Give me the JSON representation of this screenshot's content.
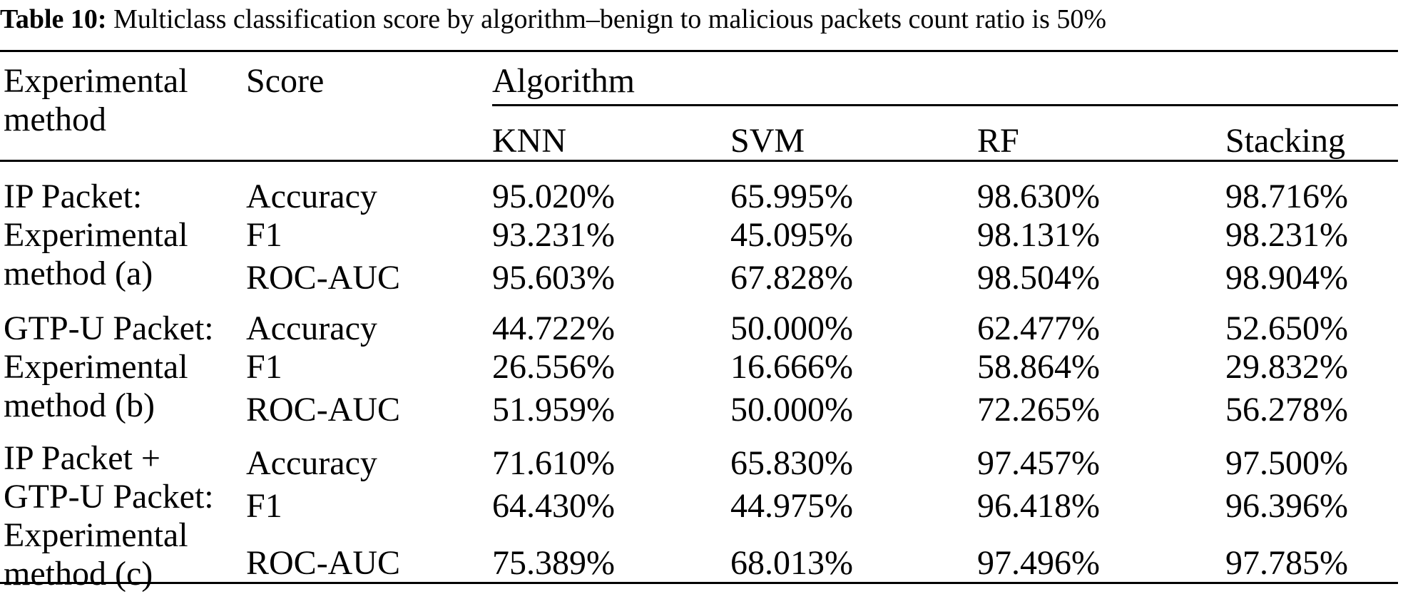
{
  "caption": {
    "label": "Table 10:",
    "text": " Multiclass classification score by algorithm–benign to malicious packets count ratio is 50%"
  },
  "header": {
    "method": "Experimental method",
    "score": "Score",
    "algorithm": "Algorithm",
    "algorithms": [
      "KNN",
      "SVM",
      "RF",
      "Stacking"
    ]
  },
  "groups": [
    {
      "method": "IP Packet:\nExperimental\nmethod (a)",
      "rows": [
        {
          "score": "Accuracy",
          "values": [
            "95.020%",
            "65.995%",
            "98.630%",
            "98.716%"
          ]
        },
        {
          "score": "F1",
          "values": [
            "93.231%",
            "45.095%",
            "98.131%",
            "98.231%"
          ]
        },
        {
          "score": "ROC-AUC",
          "values": [
            "95.603%",
            "67.828%",
            "98.504%",
            "98.904%"
          ]
        }
      ]
    },
    {
      "method": "GTP-U Packet:\nExperimental\nmethod (b)",
      "rows": [
        {
          "score": "Accuracy",
          "values": [
            "44.722%",
            "50.000%",
            "62.477%",
            "52.650%"
          ]
        },
        {
          "score": "F1",
          "values": [
            "26.556%",
            "16.666%",
            "58.864%",
            "29.832%"
          ]
        },
        {
          "score": "ROC-AUC",
          "values": [
            "51.959%",
            "50.000%",
            "72.265%",
            "56.278%"
          ]
        }
      ]
    },
    {
      "method": "IP Packet +\nGTP-U Packet:\nExperimental\nmethod (c)",
      "rows": [
        {
          "score": "Accuracy",
          "values": [
            "71.610%",
            "65.830%",
            "97.457%",
            "97.500%"
          ]
        },
        {
          "score": "F1",
          "values": [
            "64.430%",
            "44.975%",
            "96.418%",
            "96.396%"
          ]
        },
        {
          "score": "ROC-AUC",
          "values": [
            "75.389%",
            "68.013%",
            "97.496%",
            "97.785%"
          ]
        }
      ]
    }
  ]
}
